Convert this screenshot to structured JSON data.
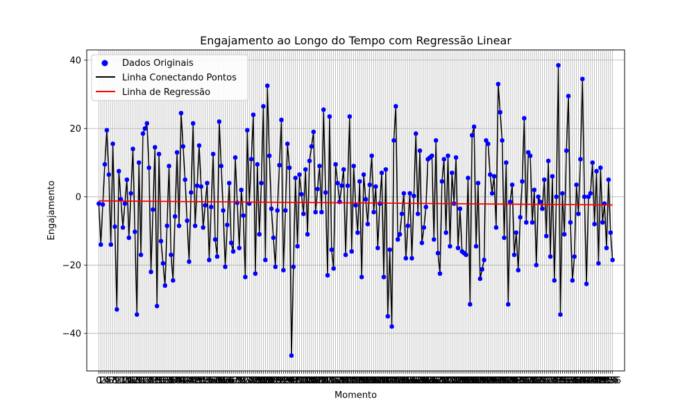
{
  "chart_data": {
    "type": "scatter",
    "title": "Engajamento ao Longo do Tempo com Regressão Linear",
    "xlabel": "Momento",
    "ylabel": "Engajamento",
    "xlim": [
      -6,
      262
    ],
    "ylim": [
      -51,
      43
    ],
    "yticks": [
      -40,
      -20,
      0,
      20,
      40
    ],
    "grid": true,
    "legend_position": "top-left",
    "legend": [
      "Dados Originais",
      "Linha Conectando Pontos",
      "Linha de Regressão"
    ],
    "colors": {
      "points": "#0000ff",
      "line": "#000000",
      "regression": "#ff0000",
      "grid": "#b0b0b0"
    },
    "n_points": 257,
    "anchors": [
      [
        0,
        -2
      ],
      [
        1,
        -14
      ],
      [
        3,
        9.5
      ],
      [
        4,
        19.5
      ],
      [
        5,
        6.5
      ],
      [
        6,
        -14
      ],
      [
        7,
        15.5
      ],
      [
        9,
        -33
      ],
      [
        10,
        7.5
      ],
      [
        12,
        -9
      ],
      [
        14,
        5
      ],
      [
        15,
        -12
      ],
      [
        17,
        14
      ],
      [
        19,
        -34.5
      ],
      [
        20,
        10
      ],
      [
        21,
        -17
      ],
      [
        22,
        18.5
      ],
      [
        24,
        21.5
      ],
      [
        25,
        8.5
      ],
      [
        26,
        -22
      ],
      [
        28,
        14.5
      ],
      [
        29,
        -32
      ],
      [
        30,
        12.5
      ],
      [
        31,
        -13
      ],
      [
        33,
        -26
      ],
      [
        35,
        9
      ],
      [
        36,
        -17
      ],
      [
        37,
        -24.5
      ],
      [
        39,
        13
      ],
      [
        40,
        -8.5
      ],
      [
        41,
        24.5
      ],
      [
        43,
        5
      ],
      [
        45,
        -19
      ],
      [
        47,
        21.5
      ],
      [
        48,
        -8.5
      ],
      [
        50,
        15
      ],
      [
        52,
        -9
      ],
      [
        54,
        4
      ],
      [
        55,
        -18.5
      ],
      [
        57,
        12.5
      ],
      [
        58,
        -12.5
      ],
      [
        59,
        -17.5
      ],
      [
        60,
        22
      ],
      [
        62,
        -4
      ],
      [
        63,
        -20.5
      ],
      [
        65,
        4
      ],
      [
        66,
        -13.5
      ],
      [
        67,
        -16
      ],
      [
        68,
        11.5
      ],
      [
        70,
        -15
      ],
      [
        71,
        2
      ],
      [
        72,
        -5.5
      ],
      [
        73,
        -23.5
      ],
      [
        74,
        19.5
      ],
      [
        75,
        -2
      ],
      [
        77,
        24
      ],
      [
        78,
        -22.5
      ],
      [
        79,
        9.5
      ],
      [
        80,
        -11
      ],
      [
        81,
        4
      ],
      [
        82,
        26.5
      ],
      [
        83,
        -18.5
      ],
      [
        84,
        32.5
      ],
      [
        85,
        12
      ],
      [
        86,
        -3.5
      ],
      [
        88,
        -20.5
      ],
      [
        89,
        -4
      ],
      [
        91,
        22.5
      ],
      [
        92,
        -21.5
      ],
      [
        93,
        -4
      ],
      [
        94,
        15.5
      ],
      [
        95,
        8.5
      ],
      [
        96,
        -46.5
      ],
      [
        98,
        5.5
      ],
      [
        99,
        -14.5
      ],
      [
        100,
        6.5
      ],
      [
        102,
        -5
      ],
      [
        103,
        8
      ],
      [
        104,
        -11
      ],
      [
        105,
        10.5
      ],
      [
        107,
        19
      ],
      [
        108,
        -4.5
      ],
      [
        110,
        9
      ],
      [
        111,
        -4.5
      ],
      [
        112,
        25.5
      ],
      [
        114,
        -23
      ],
      [
        115,
        23.5
      ],
      [
        116,
        -15.5
      ],
      [
        117,
        -21
      ],
      [
        118,
        9.5
      ],
      [
        120,
        -1.5
      ],
      [
        122,
        8
      ],
      [
        123,
        -17
      ],
      [
        125,
        23.5
      ],
      [
        126,
        -16
      ],
      [
        127,
        9
      ],
      [
        128,
        -2.5
      ],
      [
        129,
        -10.5
      ],
      [
        130,
        4.5
      ],
      [
        131,
        -23.5
      ],
      [
        132,
        6.5
      ],
      [
        134,
        -8
      ],
      [
        135,
        3.5
      ],
      [
        136,
        12
      ],
      [
        137,
        -4.5
      ],
      [
        138,
        3
      ],
      [
        139,
        -15
      ],
      [
        140,
        -2
      ],
      [
        141,
        7
      ],
      [
        142,
        -23.5
      ],
      [
        143,
        8
      ],
      [
        144,
        -35
      ],
      [
        145,
        -15.5
      ],
      [
        146,
        -38
      ],
      [
        147,
        16.5
      ],
      [
        148,
        26.5
      ],
      [
        149,
        -12.5
      ],
      [
        150,
        -11
      ],
      [
        152,
        1
      ],
      [
        153,
        -18
      ],
      [
        155,
        1
      ],
      [
        156,
        -18
      ],
      [
        158,
        18.5
      ],
      [
        159,
        -5
      ],
      [
        160,
        13.5
      ],
      [
        161,
        -13.5
      ],
      [
        162,
        -9
      ],
      [
        163,
        -3
      ],
      [
        164,
        11
      ],
      [
        166,
        12
      ],
      [
        167,
        -12.5
      ],
      [
        168,
        16.5
      ],
      [
        169,
        -16.5
      ],
      [
        170,
        -22.5
      ],
      [
        171,
        4.5
      ],
      [
        172,
        11
      ],
      [
        173,
        -10.5
      ],
      [
        174,
        12
      ],
      [
        175,
        -14.5
      ],
      [
        176,
        7
      ],
      [
        177,
        -2
      ],
      [
        178,
        11.5
      ],
      [
        179,
        -15
      ],
      [
        180,
        -3.5
      ],
      [
        181,
        -16
      ],
      [
        183,
        -17
      ],
      [
        184,
        5.5
      ],
      [
        185,
        -31.5
      ],
      [
        186,
        18
      ],
      [
        187,
        20.5
      ],
      [
        188,
        -14.5
      ],
      [
        189,
        4
      ],
      [
        190,
        -24
      ],
      [
        192,
        -18.5
      ],
      [
        193,
        16.5
      ],
      [
        194,
        15.5
      ],
      [
        195,
        6.5
      ],
      [
        196,
        1
      ],
      [
        197,
        6
      ],
      [
        198,
        -9
      ],
      [
        199,
        33
      ],
      [
        201,
        16.5
      ],
      [
        202,
        -12
      ],
      [
        203,
        10
      ],
      [
        204,
        -31.5
      ],
      [
        205,
        -1.5
      ],
      [
        206,
        3.5
      ],
      [
        207,
        -17
      ],
      [
        208,
        -10.5
      ],
      [
        209,
        -21.5
      ],
      [
        210,
        -6
      ],
      [
        211,
        4.5
      ],
      [
        212,
        23
      ],
      [
        213,
        -7.5
      ],
      [
        214,
        13
      ],
      [
        215,
        12
      ],
      [
        216,
        -7.5
      ],
      [
        217,
        2
      ],
      [
        218,
        -20
      ],
      [
        219,
        0
      ],
      [
        220,
        -1.5
      ],
      [
        221,
        -3.5
      ],
      [
        222,
        5
      ],
      [
        223,
        -11.5
      ],
      [
        224,
        10.5
      ],
      [
        225,
        -17.5
      ],
      [
        226,
        6
      ],
      [
        227,
        -24.5
      ],
      [
        228,
        0
      ],
      [
        229,
        38.5
      ],
      [
        230,
        -34.5
      ],
      [
        231,
        1
      ],
      [
        232,
        -11
      ],
      [
        233,
        13.5
      ],
      [
        234,
        29.5
      ],
      [
        235,
        -7.5
      ],
      [
        236,
        -24.5
      ],
      [
        237,
        -17.5
      ],
      [
        238,
        3.5
      ],
      [
        239,
        -5
      ],
      [
        240,
        11
      ],
      [
        241,
        34.5
      ],
      [
        242,
        0
      ],
      [
        243,
        -25.5
      ],
      [
        244,
        0
      ],
      [
        245,
        1
      ],
      [
        246,
        10
      ],
      [
        247,
        -8
      ],
      [
        248,
        7.5
      ],
      [
        249,
        -19.5
      ],
      [
        250,
        8.5
      ],
      [
        251,
        -7.5
      ],
      [
        252,
        -2
      ],
      [
        253,
        -15
      ],
      [
        254,
        5
      ],
      [
        255,
        -10.5
      ],
      [
        256,
        -18.5
      ]
    ],
    "regression": {
      "start": [
        0,
        -1.2
      ],
      "end": [
        256,
        -2.4
      ]
    }
  }
}
